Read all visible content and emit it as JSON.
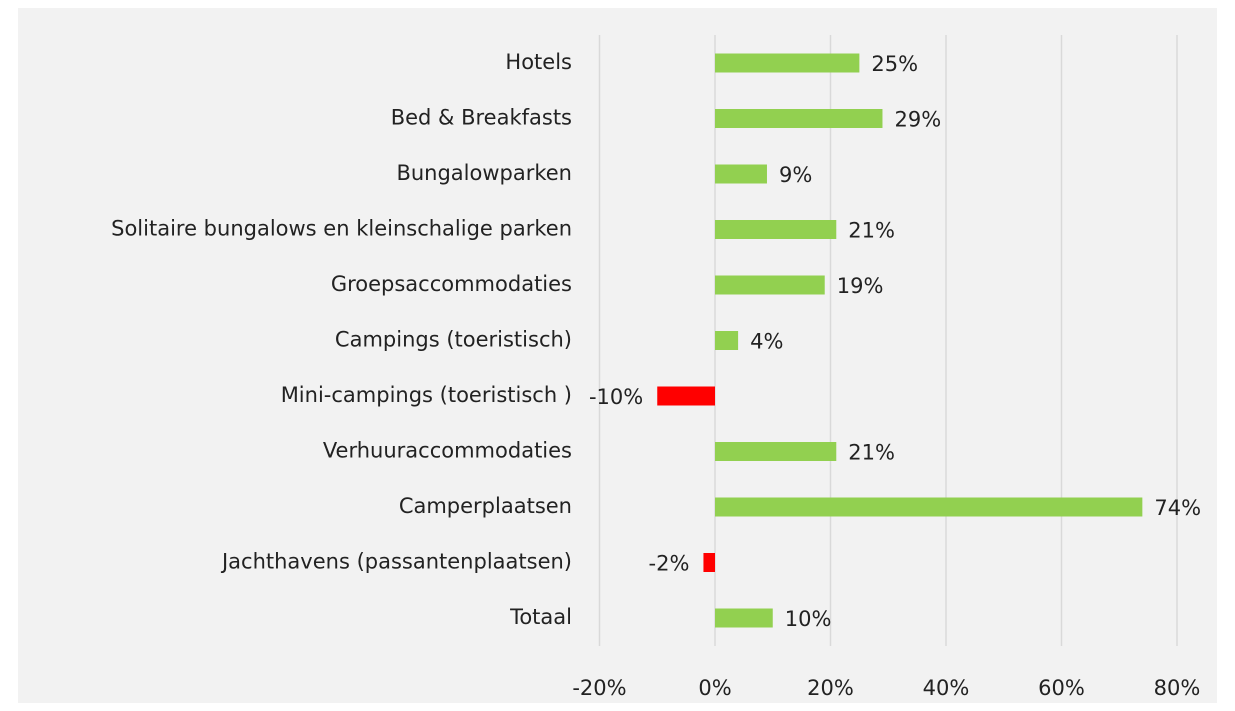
{
  "chart_data": {
    "type": "hbar",
    "categories": [
      "Hotels",
      "Bed & Breakfasts",
      "Bungalowparken",
      "Solitaire bungalows en kleinschalige parken",
      "Groepsaccommodaties",
      "Campings (toeristisch)",
      "Mini-campings (toeristisch )",
      "Verhuuraccommodaties",
      "Camperplaatsen",
      "Jachthavens (passantenplaatsen)",
      "Totaal"
    ],
    "values": [
      25,
      29,
      9,
      21,
      19,
      4,
      -10,
      21,
      74,
      -2,
      10
    ],
    "value_labels": [
      "25%",
      "29%",
      "9%",
      "21%",
      "19%",
      "4%",
      "-10%",
      "21%",
      "74%",
      "-2%",
      "10%"
    ],
    "color": "#92d050",
    "negative_color": "#ff0000",
    "xlim": [
      -20,
      80
    ],
    "xticks": [
      {
        "value": -20,
        "label": "-20%"
      },
      {
        "value": 0,
        "label": "0%"
      },
      {
        "value": 20,
        "label": "20%"
      },
      {
        "value": 40,
        "label": "40%"
      },
      {
        "value": 60,
        "label": "60%"
      },
      {
        "value": 80,
        "label": "80%"
      }
    ],
    "grid": true
  }
}
